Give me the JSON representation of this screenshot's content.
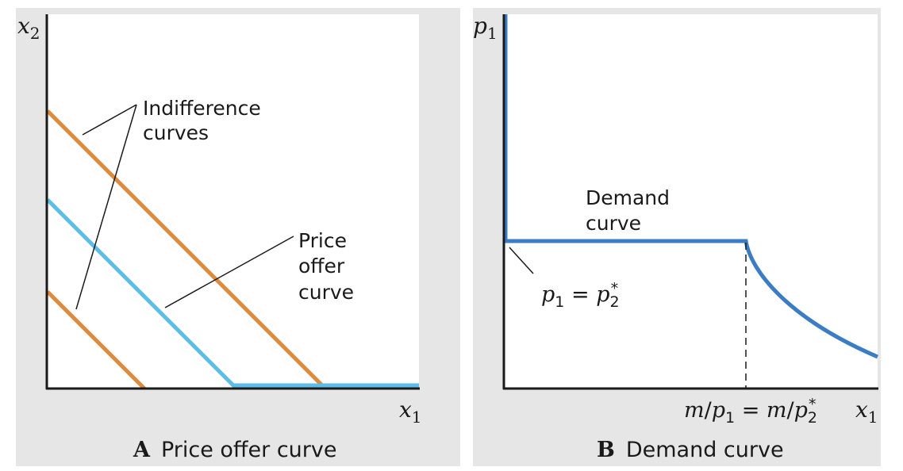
{
  "colors": {
    "background_panel": "#e6e6e7",
    "plot_area": "#ffffff",
    "axis": "#1a1a1a",
    "indifference": "#e08a3c",
    "price_offer": "#5bbde8",
    "demand": "#3a7dc4"
  },
  "panel_a": {
    "y_axis_label": "x",
    "y_axis_sub": "2",
    "x_axis_label": "x",
    "x_axis_sub": "1",
    "indifference_label_line1": "Indifference",
    "indifference_label_line2": "curves",
    "price_offer_label_line1": "Price",
    "price_offer_label_line2": "offer",
    "price_offer_label_line3": "curve",
    "caption_letter": "A",
    "caption_text": "Price offer curve"
  },
  "panel_b": {
    "y_axis_label": "p",
    "y_axis_sub": "1",
    "x_axis_label": "x",
    "x_axis_sub": "1",
    "demand_label_line1": "Demand",
    "demand_label_line2": "curve",
    "price_label": {
      "lhs": "p",
      "lhs_sub": "1",
      "eq": " = ",
      "rhs": "p",
      "rhs_sub": "2",
      "rhs_sup": "*"
    },
    "quantity_label": {
      "a": "m",
      "slash1": "/",
      "b": "p",
      "b_sub": "1",
      "eq": " = ",
      "c": "m",
      "slash2": "/",
      "d": "p",
      "d_sub": "2",
      "d_sup": "*"
    },
    "caption_letter": "B",
    "caption_text": "Demand curve"
  }
}
